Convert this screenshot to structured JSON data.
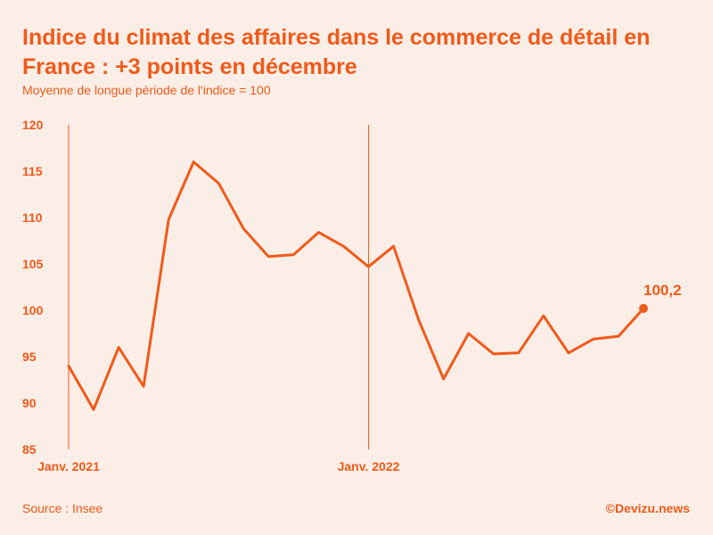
{
  "header": {
    "title": "Indice du climat des affaires dans le commerce de détail en France : +3 points en décembre",
    "subtitle": "Moyenne de longue période de l'indice = 100"
  },
  "footer": {
    "source": "Source : Insee",
    "brand": "©Devizu.news"
  },
  "colors": {
    "accent": "#f05a1a",
    "background": "#fbeee6"
  },
  "chart_data": {
    "type": "line",
    "title": "Indice du climat des affaires dans le commerce de détail en France : +3 points en décembre",
    "subtitle": "Moyenne de longue période de l'indice = 100",
    "ylim": [
      85,
      120
    ],
    "yticks": [
      85,
      90,
      95,
      100,
      105,
      110,
      115,
      120
    ],
    "x_markers": [
      {
        "index": 0,
        "label": "Janv. 2021"
      },
      {
        "index": 12,
        "label": "Janv. 2022"
      }
    ],
    "x": [
      "2021-01",
      "2021-02",
      "2021-03",
      "2021-04",
      "2021-05",
      "2021-06",
      "2021-07",
      "2021-08",
      "2021-09",
      "2021-10",
      "2021-11",
      "2021-12",
      "2022-01",
      "2022-02",
      "2022-03",
      "2022-04",
      "2022-05",
      "2022-06",
      "2022-07",
      "2022-08",
      "2022-09",
      "2022-10",
      "2022-11",
      "2022-12"
    ],
    "series": [
      {
        "values": [
          94.0,
          89.3,
          96.0,
          91.8,
          109.8,
          116.0,
          113.7,
          108.8,
          105.8,
          106.0,
          108.4,
          106.9,
          104.7,
          106.9,
          99.0,
          92.6,
          97.5,
          95.3,
          95.4,
          99.4,
          95.4,
          96.9,
          97.2,
          100.2
        ]
      }
    ],
    "annotation": {
      "index": 23,
      "label": "100,2"
    }
  }
}
